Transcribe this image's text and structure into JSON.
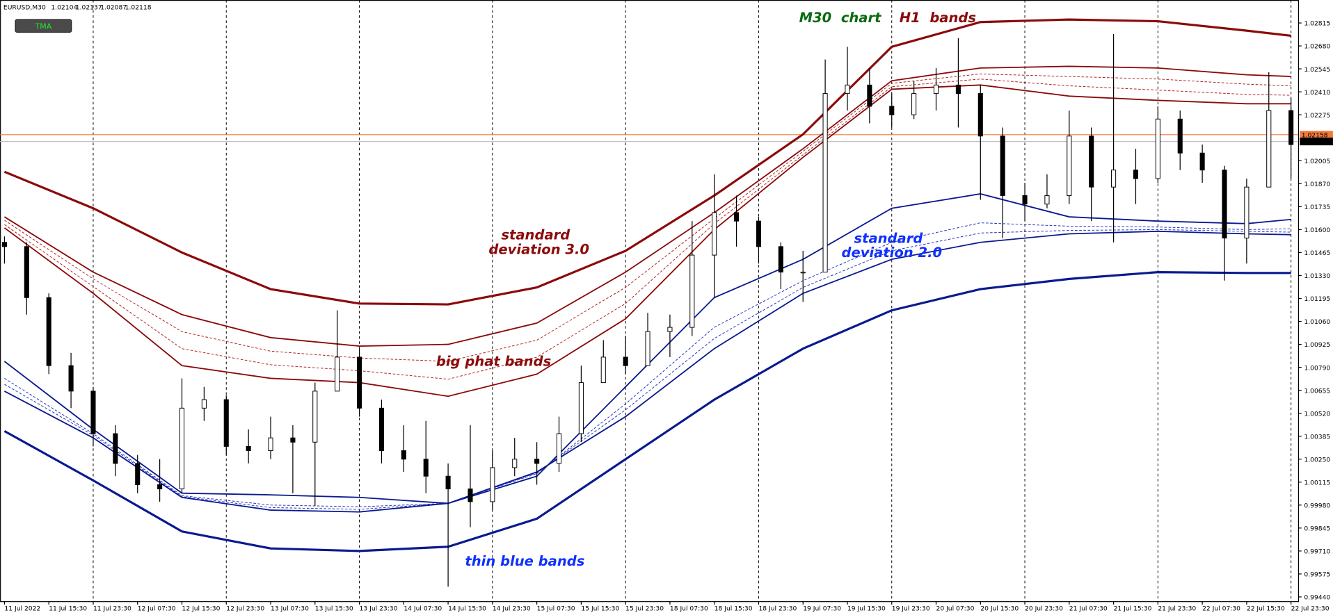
{
  "chart_data": {
    "type": "candlestick",
    "header": {
      "symbol": "EURUSD,M30",
      "quote": [
        1.02104,
        1.02137,
        1.02087,
        1.02118
      ]
    },
    "button": "TMA",
    "xlim": [
      -0.1,
      29.16
    ],
    "xticks": [
      {
        "value": 0,
        "label": "11 Jul 2022"
      },
      {
        "value": 1,
        "label": "11 Jul 15:30"
      },
      {
        "value": 2,
        "label": "11 Jul 23:30"
      },
      {
        "value": 3,
        "label": "12 Jul 07:30"
      },
      {
        "value": 4,
        "label": "12 Jul 15:30"
      },
      {
        "value": 5,
        "label": "12 Jul 23:30"
      },
      {
        "value": 6,
        "label": "13 Jul 07:30"
      },
      {
        "value": 7,
        "label": "13 Jul 15:30"
      },
      {
        "value": 8,
        "label": "13 Jul 23:30"
      },
      {
        "value": 9,
        "label": "14 Jul 07:30"
      },
      {
        "value": 10,
        "label": "14 Jul 15:30"
      },
      {
        "value": 11,
        "label": "14 Jul 23:30"
      },
      {
        "value": 12,
        "label": "15 Jul 07:30"
      },
      {
        "value": 13,
        "label": "15 Jul 15:30"
      },
      {
        "value": 14,
        "label": "15 Jul 23:30"
      },
      {
        "value": 15,
        "label": "18 Jul 07:30"
      },
      {
        "value": 16,
        "label": "18 Jul 15:30"
      },
      {
        "value": 17,
        "label": "18 Jul 23:30"
      },
      {
        "value": 18,
        "label": "19 Jul 07:30"
      },
      {
        "value": 19,
        "label": "19 Jul 15:30"
      },
      {
        "value": 20,
        "label": "19 Jul 23:30"
      },
      {
        "value": 21,
        "label": "20 Jul 07:30"
      },
      {
        "value": 22,
        "label": "20 Jul 15:30"
      },
      {
        "value": 23,
        "label": "20 Jul 23:30"
      },
      {
        "value": 24,
        "label": "21 Jul 07:30"
      },
      {
        "value": 25,
        "label": "21 Jul 15:30"
      },
      {
        "value": 26,
        "label": "21 Jul 23:30"
      },
      {
        "value": 27,
        "label": "22 Jul 07:30"
      },
      {
        "value": 28,
        "label": "22 Jul 15:30"
      },
      {
        "value": 29,
        "label": "22 Jul 23:30"
      }
    ],
    "ylim": [
      0.99415,
      1.0295
    ],
    "yticks": [
      1.02815,
      {
        "value": 1.0268,
        "label": "1.02680"
      },
      1.02545,
      {
        "value": 1.0241,
        "label": "1.02410"
      },
      1.02275,
      1.02005,
      {
        "value": 1.0187,
        "label": "1.01870"
      },
      1.01735,
      {
        "value": 1.016,
        "label": "1.01600"
      },
      1.01465,
      {
        "value": 1.0133,
        "label": "1.01330"
      },
      1.01195,
      {
        "value": 1.0106,
        "label": "1.01060"
      },
      1.00925,
      {
        "value": 1.0079,
        "label": "1.00790"
      },
      1.00655,
      {
        "value": 1.0052,
        "label": "1.00520"
      },
      1.00385,
      {
        "value": 1.0025,
        "label": "1.00250"
      },
      1.00115,
      {
        "value": 0.9998,
        "label": "0.99980"
      },
      0.99845,
      {
        "value": 0.9971,
        "label": "0.99710"
      },
      0.99575,
      {
        "value": 0.9944,
        "label": "0.99440"
      }
    ],
    "grid": true,
    "price_lines": [
      {
        "value": 1.02158,
        "color": "#f07a3c"
      },
      {
        "value": 1.02118,
        "color": "#c0c0c0"
      }
    ],
    "candles": {
      "x": [
        0,
        0.5,
        1,
        1.5,
        2,
        2.5,
        3,
        3.5,
        4,
        4.5,
        5,
        5.5,
        6,
        6.5,
        7,
        7.5,
        8,
        8.5,
        9,
        9.5,
        10,
        10.5,
        11,
        11.5,
        12,
        12.5,
        13,
        13.5,
        14,
        14.5,
        15,
        15.5,
        16,
        16.5,
        17,
        17.5,
        18,
        18.5,
        19,
        19.5,
        20,
        20.5,
        21,
        21.5,
        22,
        22.5,
        23,
        23.5,
        24,
        24.5,
        25,
        25.5,
        26,
        26.5,
        27,
        27.5,
        28,
        28.5,
        29
      ],
      "open": [
        1.01525,
        1.015,
        1.012,
        1.008,
        1.0065,
        1.004,
        1.00225,
        1.001,
        1.00075,
        1.0055,
        1.006,
        1.00325,
        1.003,
        1.00375,
        1.0035,
        1.0065,
        1.0085,
        1.0055,
        1.003,
        1.0025,
        1.0015,
        1.00075,
        1.0,
        1.002,
        1.0025,
        1.00225,
        1.004,
        1.007,
        1.0085,
        1.008,
        1.01,
        1.01025,
        1.0145,
        1.017,
        1.0165,
        1.015,
        1.0135,
        1.0135,
        1.024,
        1.0245,
        1.02325,
        1.02275,
        1.024,
        1.0245,
        1.024,
        1.0215,
        1.018,
        1.0175,
        1.018,
        1.0215,
        1.0185,
        1.0195,
        1.019,
        1.0225,
        1.0205,
        1.0195,
        1.0155,
        1.0185,
        1.023
      ],
      "high": [
        1.0156,
        1.01525,
        1.01225,
        1.00875,
        1.00675,
        1.0045,
        1.00275,
        1.0025,
        1.00725,
        1.00675,
        1.00625,
        1.00425,
        1.005,
        1.0045,
        1.007,
        1.01125,
        1.009,
        1.006,
        1.0045,
        1.00475,
        1.00225,
        1.0045,
        1.003,
        1.00375,
        1.0035,
        1.005,
        1.008,
        1.0095,
        1.00975,
        1.0111,
        1.011,
        1.0165,
        1.01925,
        1.018,
        1.01675,
        1.01525,
        1.01475,
        1.026,
        1.02675,
        1.0255,
        1.024,
        1.02475,
        1.0255,
        1.02725,
        1.0245,
        1.022,
        1.01875,
        1.01925,
        1.023,
        1.022,
        1.0275,
        1.02075,
        1.02325,
        1.023,
        1.021,
        1.01975,
        1.019,
        1.02525,
        1.02375
      ],
      "low": [
        1.014,
        1.011,
        1.0075,
        1.0055,
        1.00325,
        1.0015,
        1.0005,
        1.0,
        1.0005,
        1.00475,
        1.00275,
        1.00225,
        1.0025,
        1.0005,
        0.99975,
        1.007,
        1.005,
        1.00225,
        1.00175,
        1.0005,
        0.995,
        0.9985,
        0.9995,
        1.0015,
        1.001,
        1.00175,
        1.0035,
        1.00725,
        1.0075,
        1.0085,
        1.0085,
        1.00975,
        1.012,
        1.015,
        1.014,
        1.0125,
        1.01175,
        1.0145,
        1.023,
        1.02225,
        1.022,
        1.0225,
        1.023,
        1.022,
        1.01775,
        1.0155,
        1.0165,
        1.01725,
        1.0175,
        1.0165,
        1.01525,
        1.0175,
        1.01875,
        1.0195,
        1.01875,
        1.013,
        1.014,
        1.01875,
        1.019
      ],
      "close": [
        1.015,
        1.012,
        1.008,
        1.0065,
        1.004,
        1.00225,
        1.001,
        1.00075,
        1.0055,
        1.006,
        1.00325,
        1.003,
        1.00375,
        1.0035,
        1.0065,
        1.0085,
        1.0055,
        1.003,
        1.0025,
        1.0015,
        1.00075,
        1.0,
        1.002,
        1.0025,
        1.00225,
        1.004,
        1.007,
        1.0085,
        1.008,
        1.01,
        1.01025,
        1.0145,
        1.017,
        1.0165,
        1.015,
        1.0135,
        1.0135,
        1.024,
        1.0245,
        1.02325,
        1.02275,
        1.024,
        1.0245,
        1.024,
        1.0215,
        1.018,
        1.0175,
        1.018,
        1.0215,
        1.0185,
        1.0195,
        1.019,
        1.0225,
        1.0205,
        1.0195,
        1.0155,
        1.0185,
        1.023,
        1.021
      ],
      "up_color": "#ffffff",
      "down_color": "#000000",
      "edge_color": "#000000"
    },
    "band_x": [
      0,
      2,
      4,
      6,
      8,
      10,
      12,
      14,
      16,
      18,
      20,
      22,
      24,
      26,
      28,
      29
    ],
    "series": [
      {
        "color": "#8b0a0a",
        "width": 2.6,
        "dash": false,
        "values": [
          1.0194,
          1.01725,
          1.01465,
          1.0125,
          1.01165,
          1.0116,
          1.0126,
          1.01475,
          1.018,
          1.0216,
          1.02675,
          1.0282,
          1.02835,
          1.02825,
          1.0277,
          1.0274
        ]
      },
      {
        "color": "#8b0a0a",
        "width": 1.5,
        "dash": false,
        "values": [
          1.01675,
          1.0135,
          1.011,
          1.00965,
          1.00915,
          1.00925,
          1.0105,
          1.0135,
          1.017,
          1.02075,
          1.02475,
          1.0255,
          1.0256,
          1.0255,
          1.0251,
          1.025
        ]
      },
      {
        "color": "#b02020",
        "width": 0.8,
        "dash": true,
        "values": [
          1.01655,
          1.0131,
          1.01,
          1.00885,
          1.00845,
          1.00825,
          1.0095,
          1.0126,
          1.01665,
          1.0206,
          1.0246,
          1.02515,
          1.025,
          1.02485,
          1.02455,
          1.02445
        ]
      },
      {
        "color": "#b02020",
        "width": 0.8,
        "dash": true,
        "values": [
          1.0163,
          1.01265,
          1.009,
          1.00805,
          1.0077,
          1.0072,
          1.0085,
          1.01165,
          1.01635,
          1.0204,
          1.0244,
          1.02485,
          1.02445,
          1.0242,
          1.02395,
          1.0239
        ]
      },
      {
        "color": "#8b0a0a",
        "width": 1.5,
        "dash": false,
        "values": [
          1.0161,
          1.01225,
          1.008,
          1.00725,
          1.007,
          1.0062,
          1.0075,
          1.01075,
          1.016,
          1.02025,
          1.02425,
          1.0245,
          1.02385,
          1.0236,
          1.0234,
          1.0234
        ]
      },
      {
        "color": "#0a1a8f",
        "width": 2.6,
        "dash": false,
        "values": [
          1.00415,
          1.00125,
          0.99825,
          0.99725,
          0.9971,
          0.99735,
          0.999,
          1.0025,
          1.006,
          1.009,
          1.01125,
          1.0125,
          1.0131,
          1.0135,
          1.01345,
          1.01345
        ]
      },
      {
        "color": "#0a1a8f",
        "width": 1.5,
        "dash": false,
        "values": [
          1.00825,
          1.00425,
          1.0005,
          1.0004,
          1.00025,
          0.9999,
          1.0015,
          1.00675,
          1.012,
          1.01425,
          1.01725,
          1.0181,
          1.01675,
          1.0165,
          1.01635,
          1.0166
        ]
      },
      {
        "color": "#2030c0",
        "width": 0.8,
        "dash": true,
        "values": [
          1.00725,
          1.004,
          1.00035,
          0.9998,
          0.9997,
          0.9999,
          1.00165,
          1.00575,
          1.01025,
          1.013,
          1.01525,
          1.0164,
          1.0162,
          1.01615,
          1.016,
          1.01605
        ]
      },
      {
        "color": "#2030c0",
        "width": 0.8,
        "dash": true,
        "values": [
          1.0069,
          1.0039,
          1.0003,
          0.99965,
          0.99955,
          0.9999,
          1.0017,
          1.0054,
          1.0096,
          1.0126,
          1.01475,
          1.0158,
          1.01595,
          1.016,
          1.0159,
          1.01585
        ]
      },
      {
        "color": "#0a1a8f",
        "width": 1.5,
        "dash": false,
        "values": [
          1.0065,
          1.00375,
          1.00025,
          0.9995,
          0.9994,
          0.9999,
          1.00175,
          1.005,
          1.009,
          1.01225,
          1.01425,
          1.01525,
          1.01575,
          1.0159,
          1.01575,
          1.0157
        ]
      }
    ],
    "annotations": [
      {
        "text": [
          "M30  chart"
        ],
        "color": "#0b6b12"
      },
      {
        "text": [
          "H1  bands"
        ],
        "color": "#8b0a0a"
      },
      {
        "text": [
          "standard",
          "deviation 3.0"
        ],
        "color": "#8b0a0a"
      },
      {
        "text": [
          "big phat bands"
        ],
        "color": "#8b0a0a"
      },
      {
        "text": [
          "standard",
          "deviation 2.0"
        ],
        "color": "#1030ff"
      },
      {
        "text": [
          "thin blue bands"
        ],
        "color": "#1030ff"
      }
    ]
  }
}
